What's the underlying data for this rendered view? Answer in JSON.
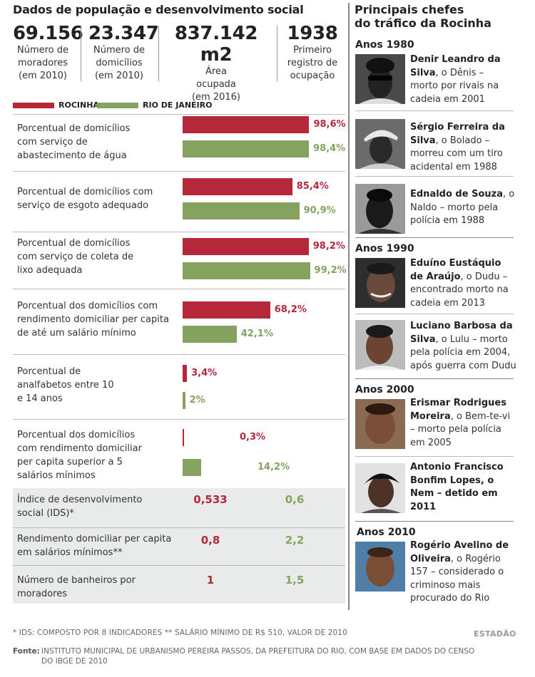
{
  "title": "Dados de população e desenvolvimento social",
  "stats": [
    {
      "value": "69.156",
      "desc": [
        "Número de",
        "moradores",
        "(em 2010)"
      ]
    },
    {
      "value": "23.347",
      "desc": [
        "Número de",
        "domicílios",
        "(em 2010)"
      ]
    },
    {
      "value": "837.142 m2",
      "desc": [
        "Área",
        "ocupada",
        "(em 2016)"
      ]
    },
    {
      "value": "1938",
      "desc": [
        "Primeiro",
        "registro de",
        "ocupação"
      ]
    }
  ],
  "colors": {
    "rocinha": "#b5283a",
    "rio": "#85a35f"
  },
  "chart_data": {
    "type": "bar",
    "series": [
      {
        "name": "ROCINHA",
        "color": "#b5283a",
        "values": [
          98.6,
          85.4,
          98.2,
          68.2,
          3.4,
          0.3
        ],
        "labels": [
          "98,6%",
          "85,4%",
          "98,2%",
          "68,2%",
          "3,4%",
          "0,3%"
        ]
      },
      {
        "name": "RIO DE JANEIRO",
        "color": "#85a35f",
        "values": [
          98.4,
          90.9,
          99.2,
          42.1,
          2,
          14.2
        ],
        "labels": [
          "98,4%",
          "90,9%",
          "99,2%",
          "42,1%",
          "2%",
          "14,2%"
        ]
      }
    ],
    "categories": [
      [
        "Porcentual de domicílios",
        "com serviço de",
        "abastecimento de água"
      ],
      [
        "Porcentual de domicílios com",
        "serviço de esgoto adequado"
      ],
      [
        "Porcentual de domicílios",
        "com serviço de coleta de",
        "lixo adequada"
      ],
      [
        "Porcentual dos domicílios com",
        "rendimento domiciliar per capita",
        "de até um salário mínimo"
      ],
      [
        "Porcentual de",
        "analfabetos entre 10",
        "e 14 anos"
      ],
      [
        "Porcentual dos domicílios",
        "com rendimento domiciliar",
        "per capita superior a 5",
        "salários mínimos"
      ]
    ],
    "xlim": [
      0,
      100
    ]
  },
  "table": [
    {
      "label": [
        "Índice de desenvolvimento",
        "social (IDS)*"
      ],
      "rocinha": "0,533",
      "rio": "0,6"
    },
    {
      "label": [
        "Rendimento domiciliar per capita",
        "em salários mínimos**"
      ],
      "rocinha": "0,8",
      "rio": "2,2"
    },
    {
      "label": [
        "Número de banheiros por",
        "moradores"
      ],
      "rocinha": "1",
      "rio": "1,5"
    }
  ],
  "chiefs_title": [
    "Principais chefes",
    "do tráfico da Rocinha"
  ],
  "decades": [
    "Anos 1980",
    "Anos 1990",
    "Anos 2000",
    "Anos 2010"
  ],
  "chiefs": [
    {
      "name": "Denir Leandro da Silva",
      "rest": [
        ", o Dênis –",
        "morto por rivais na",
        "cadeia em 2001"
      ],
      "name_lines": [
        "Denir Leandro da",
        "Silva"
      ]
    },
    {
      "name_lines": [
        "Sérgio Ferreira da",
        "Silva"
      ],
      "rest": [
        ", o Bolado –",
        "morreu com um tiro",
        "acidental em 1988"
      ]
    },
    {
      "name_lines": [
        "Ednaldo de Souza"
      ],
      "rest": [
        ", o",
        "Naldo – morto pela",
        "polícia em 1988"
      ]
    },
    {
      "name_lines": [
        "Eduíno Eustáquio",
        "de Araújo"
      ],
      "rest": [
        ", o Dudu –",
        "encontrado morto na",
        "cadeia em 2013"
      ]
    },
    {
      "name_lines": [
        "Luciano Barbosa da",
        "Silva"
      ],
      "rest": [
        ", o Lulu – morto",
        "pela polícia em 2004,",
        "após guerra com Dudu"
      ]
    },
    {
      "name_lines": [
        "Erismar Rodrigues",
        "Moreira"
      ],
      "rest": [
        ", o Bem-te-vi",
        "– morto pela polícia",
        "em 2005"
      ]
    },
    {
      "name_lines": [
        "Antonio Francisco",
        "Bonfim Lopes, o",
        "Nem – detido em",
        "2011"
      ],
      "rest": []
    },
    {
      "name_lines": [
        "Rogério Avelino de",
        "Oliveira"
      ],
      "rest": [
        ", o Rogério",
        "157 – considerado o",
        "criminoso mais",
        "procurado do Rio"
      ]
    }
  ],
  "footnote": "* IDS: COMPOSTO POR 8 INDICADORES ** SALÁRIO MÍNIMO DE R$ 510, VALOR DE 2010",
  "brand": "ESTADÃO",
  "source_label": "Fonte:",
  "source_text": "INSTITUTO MUNICIPAL DE URBANISMO PEREIRA PASSOS, DA PREFEITURA DO RIO, COM BASE EM DADOS DO CENSO DO IBGE DE 2010"
}
